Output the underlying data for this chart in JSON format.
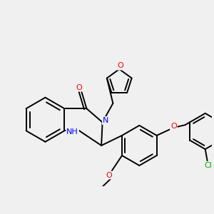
{
  "background_color": "#f0f0f0",
  "bond_color": "#000000",
  "atom_colors": {
    "O": "#ff0000",
    "N": "#0000ff",
    "Cl": "#00aa00",
    "C": "#000000",
    "H": "#000000"
  },
  "figsize": [
    3.0,
    3.0
  ],
  "dpi": 100
}
